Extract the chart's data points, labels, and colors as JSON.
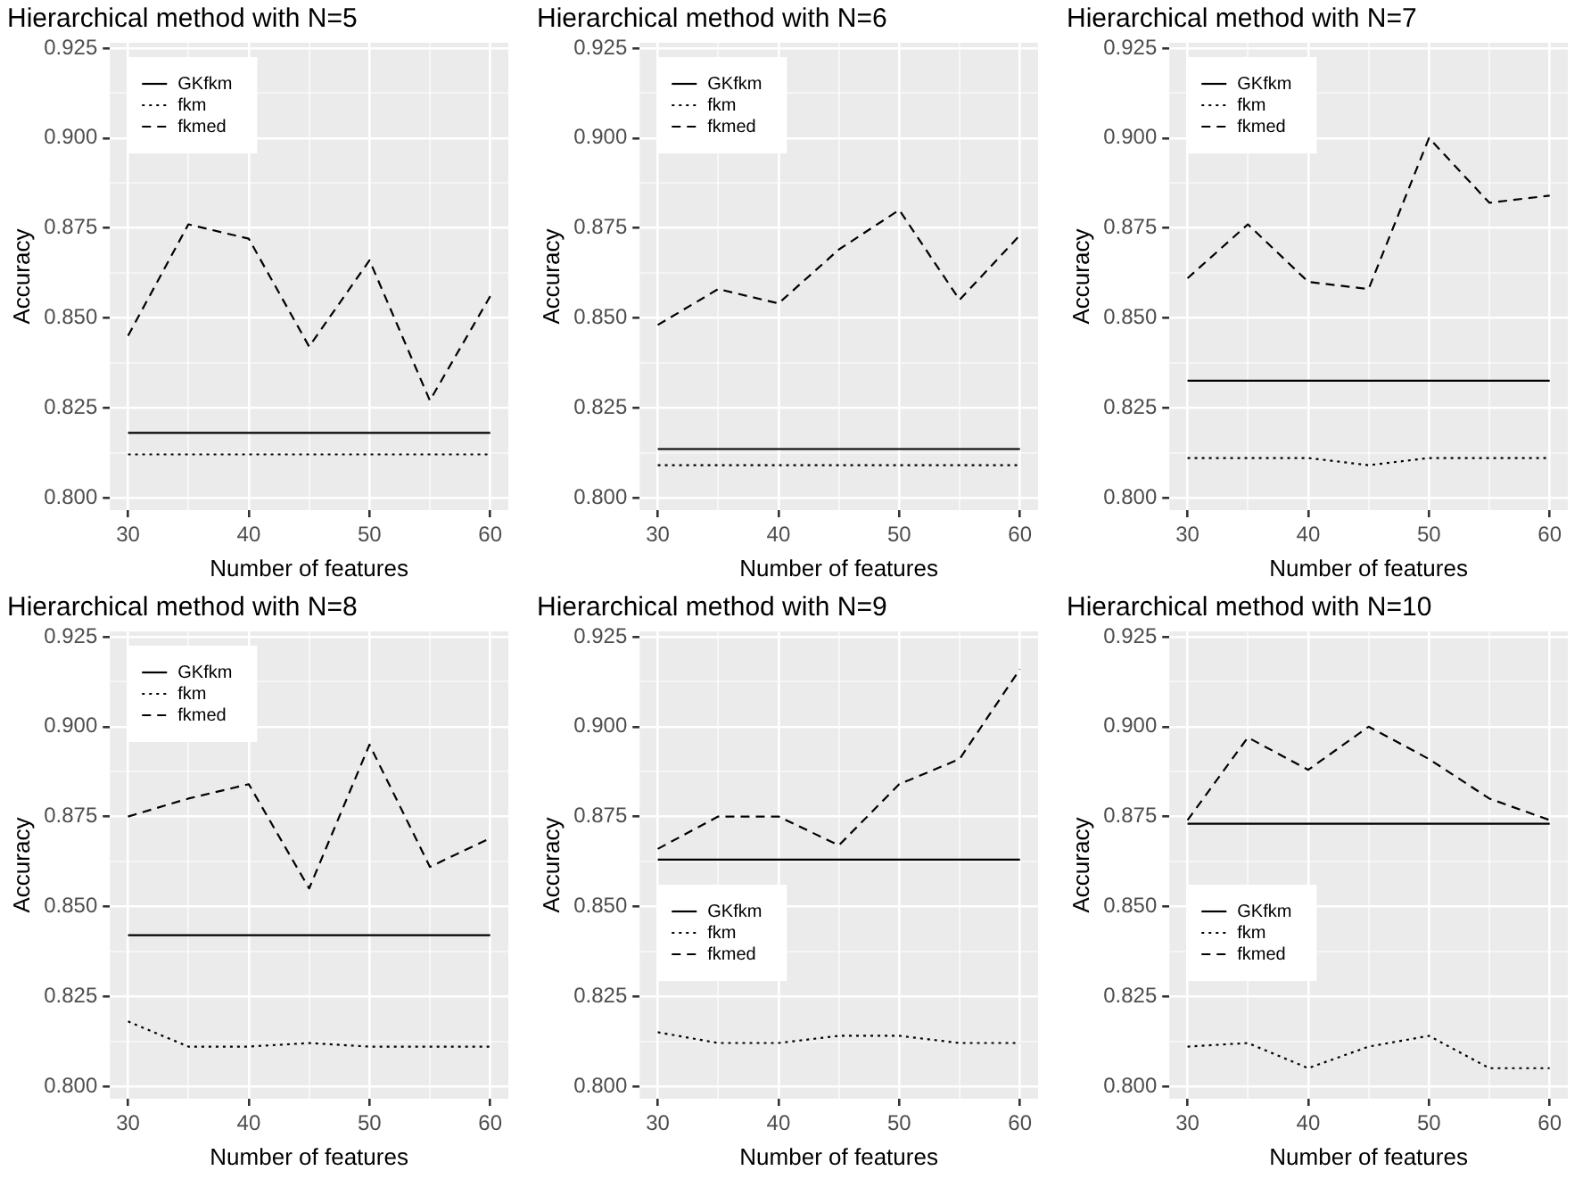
{
  "chart_data": [
    {
      "type": "line",
      "title": "Hierarchical method with N=5",
      "xlabel": "Number of features",
      "ylabel": "Accuracy",
      "x": [
        30,
        35,
        40,
        45,
        50,
        55,
        60
      ],
      "xlim": [
        28.5,
        61.5
      ],
      "ylim": [
        0.7965,
        0.9265
      ],
      "xticks": [
        30,
        {
          "value": 35,
          "label": null
        },
        40,
        {
          "value": 45,
          "label": null
        },
        50,
        {
          "value": 55,
          "label": null
        },
        60
      ],
      "yticks": [
        {
          "value": 0.8,
          "label": "0.800"
        },
        {
          "value": 0.8125,
          "label": null
        },
        0.825,
        {
          "value": 0.8375,
          "label": null
        },
        {
          "value": 0.85,
          "label": "0.850"
        },
        {
          "value": 0.8625,
          "label": null
        },
        0.875,
        {
          "value": 0.8875,
          "label": null
        },
        {
          "value": 0.9,
          "label": "0.900"
        },
        {
          "value": 0.9125,
          "label": null
        },
        0.925
      ],
      "grid": true,
      "legend": "top left",
      "series": [
        {
          "name": "GKfkm",
          "color": "#000000",
          "line_style": "solid",
          "values": [
            0.818,
            0.818,
            0.818,
            0.818,
            0.818,
            0.818,
            0.818
          ]
        },
        {
          "name": "fkm",
          "color": "#000000",
          "line_style": "dotted",
          "values": [
            0.812,
            0.812,
            0.812,
            0.812,
            0.812,
            0.812,
            0.812
          ]
        },
        {
          "name": "fkmed",
          "color": "#000000",
          "line_style": "dashed",
          "values": [
            0.845,
            0.876,
            0.872,
            0.842,
            0.866,
            0.827,
            0.856
          ]
        }
      ]
    },
    {
      "type": "line",
      "title": "Hierarchical method with N=6",
      "xlabel": "Number of features",
      "ylabel": "Accuracy",
      "x": [
        30,
        35,
        40,
        45,
        50,
        55,
        60
      ],
      "xlim": [
        28.5,
        61.5
      ],
      "ylim": [
        0.7965,
        0.9265
      ],
      "xticks": [
        30,
        {
          "value": 35,
          "label": null
        },
        40,
        {
          "value": 45,
          "label": null
        },
        50,
        {
          "value": 55,
          "label": null
        },
        60
      ],
      "yticks": [
        {
          "value": 0.8,
          "label": "0.800"
        },
        {
          "value": 0.8125,
          "label": null
        },
        0.825,
        {
          "value": 0.8375,
          "label": null
        },
        {
          "value": 0.85,
          "label": "0.850"
        },
        {
          "value": 0.8625,
          "label": null
        },
        0.875,
        {
          "value": 0.8875,
          "label": null
        },
        {
          "value": 0.9,
          "label": "0.900"
        },
        {
          "value": 0.9125,
          "label": null
        },
        0.925
      ],
      "grid": true,
      "legend": "top left",
      "series": [
        {
          "name": "GKfkm",
          "color": "#000000",
          "line_style": "solid",
          "values": [
            0.8135,
            0.8135,
            0.8135,
            0.8135,
            0.8135,
            0.8135,
            0.8135
          ]
        },
        {
          "name": "fkm",
          "color": "#000000",
          "line_style": "dotted",
          "values": [
            0.809,
            0.809,
            0.809,
            0.809,
            0.809,
            0.809,
            0.809
          ]
        },
        {
          "name": "fkmed",
          "color": "#000000",
          "line_style": "dashed",
          "values": [
            0.848,
            0.858,
            0.854,
            0.869,
            0.88,
            0.855,
            0.873
          ]
        }
      ]
    },
    {
      "type": "line",
      "title": "Hierarchical method with N=7",
      "xlabel": "Number of features",
      "ylabel": "Accuracy",
      "x": [
        30,
        35,
        40,
        45,
        50,
        55,
        60
      ],
      "xlim": [
        28.5,
        61.5
      ],
      "ylim": [
        0.7965,
        0.9265
      ],
      "xticks": [
        30,
        {
          "value": 35,
          "label": null
        },
        40,
        {
          "value": 45,
          "label": null
        },
        50,
        {
          "value": 55,
          "label": null
        },
        60
      ],
      "yticks": [
        {
          "value": 0.8,
          "label": "0.800"
        },
        {
          "value": 0.8125,
          "label": null
        },
        0.825,
        {
          "value": 0.8375,
          "label": null
        },
        {
          "value": 0.85,
          "label": "0.850"
        },
        {
          "value": 0.8625,
          "label": null
        },
        0.875,
        {
          "value": 0.8875,
          "label": null
        },
        {
          "value": 0.9,
          "label": "0.900"
        },
        {
          "value": 0.9125,
          "label": null
        },
        0.925
      ],
      "grid": true,
      "legend": "top left",
      "series": [
        {
          "name": "GKfkm",
          "color": "#000000",
          "line_style": "solid",
          "values": [
            0.8325,
            0.8325,
            0.8325,
            0.8325,
            0.8325,
            0.8325,
            0.8325
          ]
        },
        {
          "name": "fkm",
          "color": "#000000",
          "line_style": "dotted",
          "values": [
            0.811,
            0.811,
            0.811,
            0.809,
            0.811,
            0.811,
            0.811
          ]
        },
        {
          "name": "fkmed",
          "color": "#000000",
          "line_style": "dashed",
          "values": [
            0.861,
            0.876,
            0.86,
            0.858,
            0.9,
            0.882,
            0.884
          ]
        }
      ]
    },
    {
      "type": "line",
      "title": "Hierarchical method with N=8",
      "xlabel": "Number of features",
      "ylabel": "Accuracy",
      "x": [
        30,
        35,
        40,
        45,
        50,
        55,
        60
      ],
      "xlim": [
        28.5,
        61.5
      ],
      "ylim": [
        0.7965,
        0.9265
      ],
      "xticks": [
        30,
        {
          "value": 35,
          "label": null
        },
        40,
        {
          "value": 45,
          "label": null
        },
        50,
        {
          "value": 55,
          "label": null
        },
        60
      ],
      "yticks": [
        {
          "value": 0.8,
          "label": "0.800"
        },
        {
          "value": 0.8125,
          "label": null
        },
        0.825,
        {
          "value": 0.8375,
          "label": null
        },
        {
          "value": 0.85,
          "label": "0.850"
        },
        {
          "value": 0.8625,
          "label": null
        },
        0.875,
        {
          "value": 0.8875,
          "label": null
        },
        {
          "value": 0.9,
          "label": "0.900"
        },
        {
          "value": 0.9125,
          "label": null
        },
        0.925
      ],
      "grid": true,
      "legend": "top left",
      "series": [
        {
          "name": "GKfkm",
          "color": "#000000",
          "line_style": "solid",
          "values": [
            0.842,
            0.842,
            0.842,
            0.842,
            0.842,
            0.842,
            0.842
          ]
        },
        {
          "name": "fkm",
          "color": "#000000",
          "line_style": "dotted",
          "values": [
            0.818,
            0.811,
            0.811,
            0.812,
            0.811,
            0.811,
            0.811
          ]
        },
        {
          "name": "fkmed",
          "color": "#000000",
          "line_style": "dashed",
          "values": [
            0.875,
            0.88,
            0.884,
            0.855,
            0.895,
            0.861,
            0.869
          ]
        }
      ]
    },
    {
      "type": "line",
      "title": "Hierarchical method with N=9",
      "xlabel": "Number of features",
      "ylabel": "Accuracy",
      "x": [
        30,
        35,
        40,
        45,
        50,
        55,
        60
      ],
      "xlim": [
        28.5,
        61.5
      ],
      "ylim": [
        0.7965,
        0.9265
      ],
      "xticks": [
        30,
        {
          "value": 35,
          "label": null
        },
        40,
        {
          "value": 45,
          "label": null
        },
        50,
        {
          "value": 55,
          "label": null
        },
        60
      ],
      "yticks": [
        {
          "value": 0.8,
          "label": "0.800"
        },
        {
          "value": 0.8125,
          "label": null
        },
        0.825,
        {
          "value": 0.8375,
          "label": null
        },
        {
          "value": 0.85,
          "label": "0.850"
        },
        {
          "value": 0.8625,
          "label": null
        },
        0.875,
        {
          "value": 0.8875,
          "label": null
        },
        {
          "value": 0.9,
          "label": "0.900"
        },
        {
          "value": 0.9125,
          "label": null
        },
        0.925
      ],
      "grid": true,
      "legend": "left",
      "series": [
        {
          "name": "GKfkm",
          "color": "#000000",
          "line_style": "solid",
          "values": [
            0.863,
            0.863,
            0.863,
            0.863,
            0.863,
            0.863,
            0.863
          ]
        },
        {
          "name": "fkm",
          "color": "#000000",
          "line_style": "dotted",
          "values": [
            0.815,
            0.812,
            0.812,
            0.814,
            0.814,
            0.812,
            0.812
          ]
        },
        {
          "name": "fkmed",
          "color": "#000000",
          "line_style": "dashed",
          "values": [
            0.866,
            0.875,
            0.875,
            0.867,
            0.884,
            0.891,
            0.916
          ]
        }
      ]
    },
    {
      "type": "line",
      "title": "Hierarchical method with N=10",
      "xlabel": "Number of features",
      "ylabel": "Accuracy",
      "x": [
        30,
        35,
        40,
        45,
        50,
        55,
        60
      ],
      "xlim": [
        28.5,
        61.5
      ],
      "ylim": [
        0.7965,
        0.9265
      ],
      "xticks": [
        30,
        {
          "value": 35,
          "label": null
        },
        40,
        {
          "value": 45,
          "label": null
        },
        50,
        {
          "value": 55,
          "label": null
        },
        60
      ],
      "yticks": [
        {
          "value": 0.8,
          "label": "0.800"
        },
        {
          "value": 0.8125,
          "label": null
        },
        0.825,
        {
          "value": 0.8375,
          "label": null
        },
        {
          "value": 0.85,
          "label": "0.850"
        },
        {
          "value": 0.8625,
          "label": null
        },
        0.875,
        {
          "value": 0.8875,
          "label": null
        },
        {
          "value": 0.9,
          "label": "0.900"
        },
        {
          "value": 0.9125,
          "label": null
        },
        0.925
      ],
      "grid": true,
      "legend": "left",
      "series": [
        {
          "name": "GKfkm",
          "color": "#000000",
          "line_style": "solid",
          "values": [
            0.873,
            0.873,
            0.873,
            0.873,
            0.873,
            0.873,
            0.873
          ]
        },
        {
          "name": "fkm",
          "color": "#000000",
          "line_style": "dotted",
          "values": [
            0.811,
            0.812,
            0.805,
            0.811,
            0.814,
            0.805,
            0.805
          ]
        },
        {
          "name": "fkmed",
          "color": "#000000",
          "line_style": "dashed",
          "values": [
            0.874,
            0.897,
            0.888,
            0.9,
            0.891,
            0.88,
            0.874
          ]
        }
      ]
    }
  ]
}
